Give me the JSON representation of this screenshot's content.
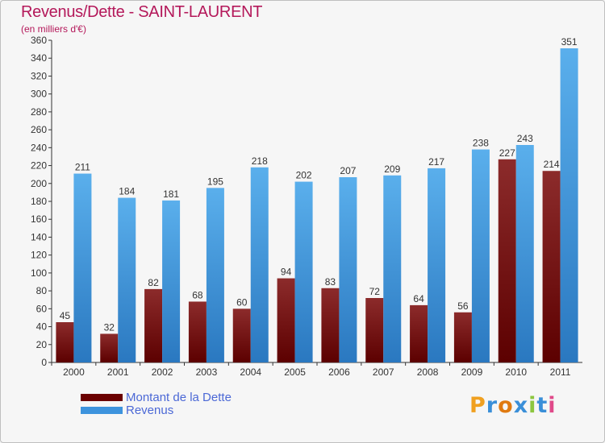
{
  "title": "Revenus/Dette - SAINT-LAURENT",
  "subtitle": "(en milliers d'€)",
  "colors": {
    "title": "#b4185a",
    "dette_top": "#8c2b2b",
    "dette_bottom": "#5c0000",
    "revenus_top": "#5aafec",
    "revenus_bottom": "#2a78c0",
    "legend_text": "#4b68d6"
  },
  "legend": [
    {
      "label": "Montant de la Dette",
      "color": "#6a0000"
    },
    {
      "label": "Revenus",
      "color": "#3d93dd"
    }
  ],
  "logo": {
    "text": "Proxiti",
    "colors": [
      "#f0a020",
      "#3a8fd8",
      "#e07a10",
      "#3a8fd8",
      "#8cc63f",
      "#3a8fd8",
      "#e04a8a"
    ]
  },
  "chart_data": {
    "type": "bar",
    "title": "Revenus/Dette - SAINT-LAURENT",
    "subtitle": "(en milliers d'€)",
    "categories": [
      "2000",
      "2001",
      "2002",
      "2003",
      "2004",
      "2005",
      "2006",
      "2007",
      "2008",
      "2009",
      "2010",
      "2011"
    ],
    "series": [
      {
        "name": "Montant de la Dette",
        "values": [
          45,
          32,
          82,
          68,
          60,
          94,
          83,
          72,
          64,
          56,
          227,
          214
        ]
      },
      {
        "name": "Revenus",
        "values": [
          211,
          184,
          181,
          195,
          218,
          202,
          207,
          209,
          217,
          238,
          243,
          351
        ]
      }
    ],
    "ylim": [
      0,
      360
    ],
    "yticks": [
      0,
      20,
      40,
      60,
      80,
      100,
      120,
      140,
      160,
      180,
      200,
      220,
      240,
      260,
      280,
      300,
      320,
      340,
      360
    ],
    "grid": false,
    "legend_position": "bottom-left"
  }
}
